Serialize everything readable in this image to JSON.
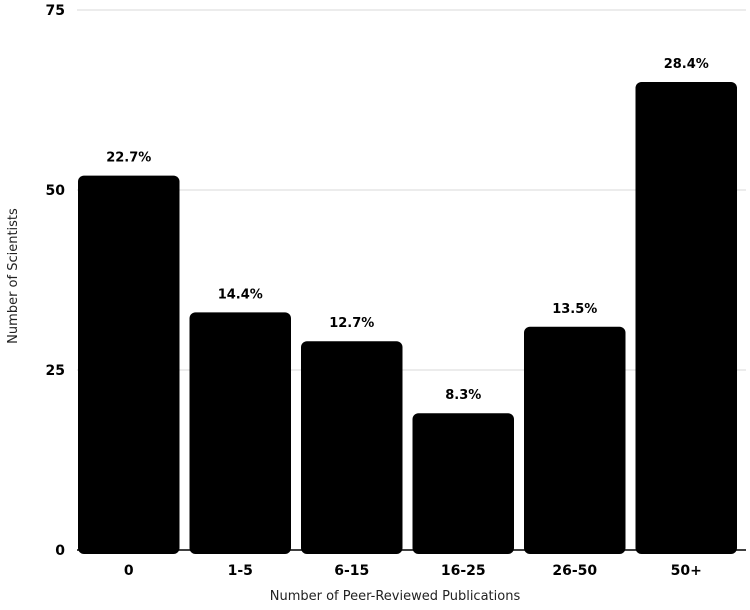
{
  "chart_data": {
    "type": "bar",
    "categories": [
      "0",
      "1-5",
      "6-15",
      "16-25",
      "26-50",
      "50+"
    ],
    "values": [
      52,
      33,
      29,
      19,
      31,
      65
    ],
    "data_labels": [
      "22.7%",
      "14.4%",
      "12.7%",
      "8.3%",
      "13.5%",
      "28.4%"
    ],
    "xlabel": "Number of Peer-Reviewed Publications",
    "ylabel": "Number of Scientists",
    "ylim": [
      0,
      75
    ],
    "yticks": [
      0,
      25,
      50,
      75
    ],
    "ytick_labels": [
      "0",
      "25",
      "50",
      "75"
    ],
    "grid": true,
    "bar_color": "#000000",
    "grid_color": "#d9d9d9"
  }
}
